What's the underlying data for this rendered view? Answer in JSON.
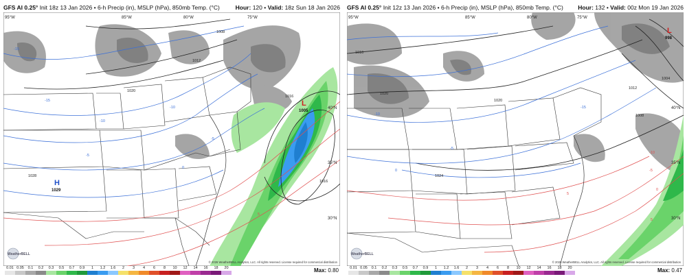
{
  "panels": [
    {
      "id": "left",
      "header_left_bold": "GFS AI 0.25°",
      "header_left": " Init 18z 13 Jan 2026 • 6-h Precip (in), MSLP (hPa), 850mb Temp. (°C)",
      "hour_label": "Hour:",
      "hour": "120",
      "valid_label": "Valid:",
      "valid": "18z Sun 18 Jan 2026",
      "lon_labels": [
        "95°W",
        "85°W",
        "80°W",
        "75°W"
      ],
      "lat_labels": [
        "40°N",
        "35°N",
        "30°N"
      ],
      "pressure_labels": [
        "1008",
        "1012",
        "1016",
        "1020",
        "1028",
        "1016"
      ],
      "temp_labels": [
        "-15",
        "-10",
        "-5",
        "0",
        "-5",
        "-10",
        "-15",
        "5"
      ],
      "highs": [
        {
          "letter": "H",
          "value": "1029"
        }
      ],
      "lows": [
        {
          "letter": "L",
          "value": "1005"
        }
      ],
      "max_label": "Max:",
      "max_value": "0.80",
      "copyright": "© 2026 WeatherBELL Analytics, LLC. All rights reserved. License required for commercial distribution",
      "logo_text": "WeatherBELL"
    },
    {
      "id": "right",
      "header_left_bold": "GFS AI 0.25°",
      "header_left": " Init 12z 13 Jan 2026 • 6-h Precip (in), MSLP (hPa), 850mb Temp. (°C)",
      "hour_label": "Hour:",
      "hour": "132",
      "valid_label": "Valid:",
      "valid": "00z Mon 19 Jan 2026",
      "lon_labels": [
        "95°W",
        "85°W",
        "80°W",
        "75°W"
      ],
      "lat_labels": [
        "40°N",
        "35°N",
        "30°N"
      ],
      "pressure_labels": [
        "1016",
        "1020",
        "1024",
        "1012",
        "1008",
        "1004",
        "1020"
      ],
      "temp_labels": [
        "-10",
        "-15",
        "-5",
        "0",
        "5",
        "-10",
        "-5",
        "0",
        "5"
      ],
      "highs": [],
      "lows": [
        {
          "letter": "L",
          "value": "998"
        }
      ],
      "max_label": "Max:",
      "max_value": "0.47",
      "copyright": "© 2026 WeatherBELL Analytics, LLC. All rights reserved. License required for commercial distribution",
      "logo_text": "WeatherBELL"
    }
  ],
  "legend": {
    "labels": [
      "0.01",
      "0.05",
      "0.1",
      "0.2",
      "0.3",
      "0.5",
      "0.7",
      "0.9",
      "1",
      "1.2",
      "1.6",
      "2",
      "3",
      "4",
      "6",
      "8",
      "10",
      "12",
      "14",
      "16",
      "18",
      "20"
    ],
    "colors": [
      "#e6e6e6",
      "#c8c8c8",
      "#a8a8a8",
      "#8a8a8a",
      "#a8e6a0",
      "#6ad36a",
      "#2fb84a",
      "#1f9a3a",
      "#1f7fd0",
      "#3a9cf0",
      "#8ac8ff",
      "#f5e16a",
      "#f5b642",
      "#f08a2a",
      "#e0502a",
      "#c82020",
      "#a01818",
      "#e060c0",
      "#c040a8",
      "#9a2a90",
      "#7a1a78",
      "#d8a8e8"
    ]
  }
}
